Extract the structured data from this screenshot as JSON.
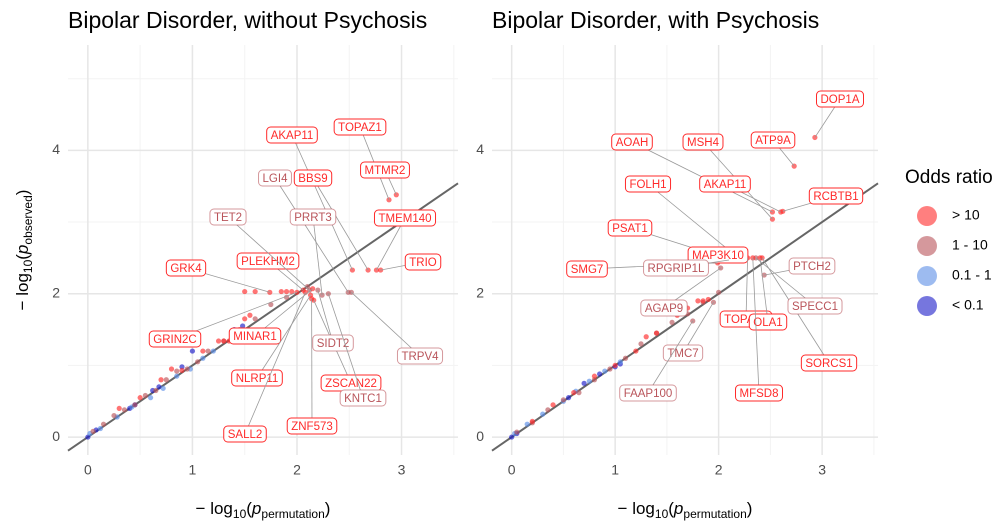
{
  "chart_data": [
    {
      "type": "scatter",
      "title": "Bipolar Disorder, without Psychosis",
      "xlabel": [
        "− log",
        "10",
        "(",
        "p",
        "permutation",
        ")"
      ],
      "ylabel": [
        "− log",
        "10",
        "(",
        "p",
        "observed",
        ")"
      ],
      "xlim": [
        -0.19,
        3.54
      ],
      "ylim": [
        -0.25,
        5.47
      ],
      "xticks": [
        0,
        1,
        2,
        3
      ],
      "yticks": [
        0,
        2,
        4
      ],
      "grid": true,
      "legend": {
        "title": "Odds ratio",
        "position": "right"
      },
      "series": [
        {
          "name": "> 10",
          "color": "#ff2a2a",
          "x": [
            2.88,
            2.95,
            2.53,
            2.68,
            2.76,
            2.8,
            1.74,
            2.06,
            2.0,
            2.15,
            2.13,
            2.16,
            2.14,
            2.08,
            1.5,
            1.6,
            1.85,
            1.9,
            1.95,
            1.25,
            1.3,
            1.35,
            1.4,
            1.45,
            1.5,
            1.55,
            1.1,
            0.9,
            0.7,
            0.5,
            0.3,
            0.8
          ],
          "y": [
            3.31,
            3.38,
            2.33,
            2.33,
            2.33,
            2.33,
            2.02,
            2.05,
            2.02,
            2.07,
            1.98,
            1.91,
            1.93,
            2.02,
            2.03,
            2.03,
            2.03,
            2.03,
            2.03,
            1.34,
            1.34,
            1.34,
            1.34,
            1.34,
            1.65,
            1.7,
            1.2,
            0.93,
            0.8,
            0.55,
            0.4,
            0.95
          ],
          "labels": [
            "TOPAZ1",
            "MTMR2",
            "AKAP11",
            "BBS9",
            "TMEM140",
            "TRIO",
            "GRK4",
            "PLEKHM2",
            "GRIN2C",
            "MINAR1",
            "NLRP11",
            "ZSCAN22",
            "ZNF573",
            "SALL2",
            null,
            null,
            null,
            null,
            null,
            null,
            null,
            null,
            null,
            null,
            null,
            null,
            null,
            null,
            null,
            null,
            null,
            null
          ]
        },
        {
          "name": "1 - 10",
          "color": "#b9545a",
          "x": [
            2.49,
            2.52,
            2.12,
            2.24,
            2.2,
            2.3,
            0.05,
            0.15,
            0.25,
            0.35,
            0.45,
            0.55,
            0.65,
            0.75,
            0.85,
            0.95,
            1.05,
            1.15,
            1.3,
            1.45,
            1.6,
            1.75,
            1.9,
            2.1
          ],
          "y": [
            2.02,
            2.02,
            2.05,
            1.98,
            2.05,
            2.0,
            0.08,
            0.18,
            0.3,
            0.38,
            0.45,
            0.58,
            0.65,
            0.8,
            0.92,
            0.95,
            1.05,
            1.2,
            1.34,
            1.5,
            1.65,
            1.85,
            1.95,
            2.1
          ],
          "labels": [
            "LGI4",
            "TRPV4",
            "TET2",
            "PRRT3",
            "SIDT2",
            "KNTC1",
            null,
            null,
            null,
            null,
            null,
            null,
            null,
            null,
            null,
            null,
            null,
            null,
            null,
            null,
            null,
            null,
            null,
            null
          ]
        },
        {
          "name": "0.1 - 1",
          "color": "#5b8ee6",
          "x": [
            0.02,
            0.12,
            0.28,
            0.42,
            0.6,
            0.72,
            0.85,
            0.98,
            1.1,
            1.2
          ],
          "y": [
            0.05,
            0.12,
            0.28,
            0.42,
            0.55,
            0.68,
            0.85,
            0.95,
            1.1,
            1.2
          ]
        },
        {
          "name": "< 0.1",
          "color": "#1a1ac8",
          "x": [
            0,
            0.08,
            0.4,
            0.45,
            0.62,
            0.68,
            0.9,
            1.0,
            1.4,
            1.48
          ],
          "y": [
            0,
            0.1,
            0.4,
            0.45,
            0.65,
            0.7,
            0.98,
            1.2,
            1.5,
            1.55
          ]
        }
      ]
    },
    {
      "type": "scatter",
      "title": "Bipolar Disorder, with Psychosis",
      "xlabel": [
        "− log",
        "10",
        "(",
        "p",
        "permutation",
        ")"
      ],
      "xlim": [
        -0.19,
        3.54
      ],
      "ylim": [
        -0.25,
        5.47
      ],
      "xticks": [
        0,
        1,
        2,
        3
      ],
      "yticks": [
        0,
        2,
        4
      ],
      "grid": true,
      "series": [
        {
          "color": "#ff2a2a",
          "x": [
            2.93,
            2.73,
            2.52,
            2.52,
            2.6,
            2.19,
            2.62,
            2.12,
            2.2,
            1.99,
            2.28,
            2.4,
            2.42,
            2.33,
            1.6,
            1.7,
            1.8,
            1.85,
            1.9,
            1.3,
            1.4,
            1.2,
            1.0,
            0.8,
            0.6,
            0.4,
            0.2
          ],
          "y": [
            4.18,
            3.78,
            3.14,
            3.04,
            3.14,
            2.5,
            3.15,
            2.47,
            2.5,
            2.43,
            2.5,
            2.5,
            2.5,
            2.5,
            1.7,
            1.8,
            1.9,
            1.9,
            1.92,
            1.4,
            1.45,
            1.2,
            1.0,
            0.85,
            0.62,
            0.45,
            0.22
          ],
          "labels": [
            "DOP1A",
            "ATP9A",
            "AOAH",
            "MSH4",
            "AKAP11",
            "FOLH1",
            "RCBTB1",
            "PSAT1",
            "MAP3K10",
            "SMG7",
            "TOPAZ1",
            "OLA1",
            "SORCS1",
            "MFSD8",
            null,
            null,
            null,
            null,
            null,
            null,
            null,
            null,
            null,
            null,
            null,
            null,
            null
          ]
        },
        {
          "color": "#b9545a",
          "x": [
            2.44,
            2.1,
            2.36,
            2.02,
            1.95,
            1.75,
            0.05,
            0.2,
            0.35,
            0.5,
            0.65,
            0.8,
            0.95,
            1.1,
            1.25,
            1.4,
            1.55,
            1.7,
            1.85,
            2.0
          ],
          "y": [
            2.26,
            2.47,
            2.5,
            2.36,
            1.88,
            1.62,
            0.07,
            0.2,
            0.38,
            0.52,
            0.62,
            0.8,
            0.95,
            1.1,
            1.3,
            1.45,
            1.6,
            1.72,
            1.88,
            2.02
          ],
          "labels": [
            "PTCH2",
            "RPGRIP1L",
            "SPECC1",
            "AGAP9",
            "TMC7",
            "FAAP100",
            null,
            null,
            null,
            null,
            null,
            null,
            null,
            null,
            null,
            null,
            null,
            null,
            null,
            null
          ]
        },
        {
          "color": "#5b8ee6",
          "x": [
            0.03,
            0.15,
            0.3,
            0.5,
            0.62,
            0.75,
            0.9,
            1.05
          ],
          "y": [
            0.05,
            0.18,
            0.32,
            0.5,
            0.64,
            0.78,
            0.92,
            1.05
          ]
        },
        {
          "color": "#1a1ac8",
          "x": [
            0,
            0.05,
            0.55,
            0.7,
            0.85,
            1.0,
            1.05
          ],
          "y": [
            0,
            0.05,
            0.55,
            0.75,
            0.88,
            0.98,
            1.02
          ]
        }
      ]
    }
  ]
}
